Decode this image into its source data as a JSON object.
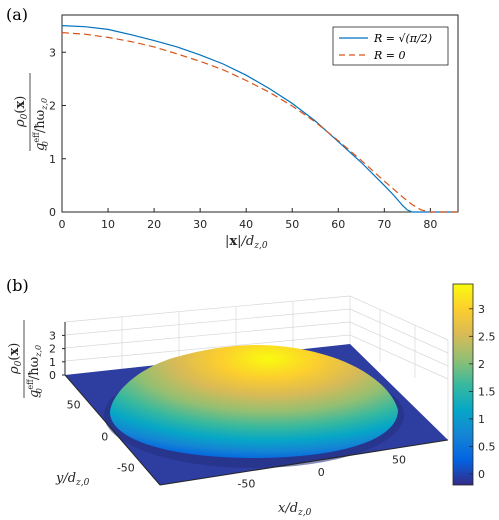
{
  "panels": {
    "a": {
      "label": "(a)"
    },
    "b": {
      "label": "(b)"
    }
  },
  "chart_data": [
    {
      "type": "line",
      "panel": "(a)",
      "xlabel": "|x|/d_{z,0}",
      "ylabel": "ρ0(x) / g0^eff/ħω_{z,0}",
      "xlim": [
        0,
        86
      ],
      "ylim": [
        0,
        3.7
      ],
      "xticks": [
        "0",
        "10",
        "20",
        "30",
        "40",
        "50",
        "60",
        "70",
        "80"
      ],
      "yticks": [
        "0",
        "1",
        "2",
        "3"
      ],
      "grid": false,
      "legend_position": "top-right",
      "series": [
        {
          "name": "R = √(π/2)",
          "color": "#0072bd",
          "dash": "solid",
          "x": [
            0,
            5,
            10,
            15,
            20,
            25,
            30,
            35,
            40,
            45,
            50,
            55,
            60,
            65,
            70,
            72,
            74,
            75,
            76,
            80,
            86
          ],
          "y": [
            3.5,
            3.48,
            3.43,
            3.33,
            3.22,
            3.1,
            2.95,
            2.78,
            2.57,
            2.32,
            2.04,
            1.71,
            1.32,
            0.93,
            0.5,
            0.32,
            0.12,
            0.04,
            0.0,
            0.0,
            0.0
          ]
        },
        {
          "name": "R = 0",
          "color": "#d95319",
          "dash": "dashed",
          "x": [
            0,
            5,
            10,
            15,
            20,
            25,
            30,
            35,
            40,
            45,
            50,
            55,
            60,
            65,
            70,
            72,
            74,
            76,
            78,
            80,
            86
          ],
          "y": [
            3.37,
            3.34,
            3.28,
            3.2,
            3.1,
            2.97,
            2.83,
            2.67,
            2.47,
            2.25,
            1.99,
            1.69,
            1.34,
            0.97,
            0.58,
            0.43,
            0.28,
            0.14,
            0.04,
            0.0,
            0.0
          ]
        }
      ]
    },
    {
      "type": "surface",
      "panel": "(b)",
      "xlabel": "x/d_{z,0}",
      "ylabel": "y/d_{z,0}",
      "zlabel": "ρ0(x) / g0^eff/ħω_{z,0}",
      "xticks": [
        "-50",
        "0",
        "50"
      ],
      "yticks": [
        "50",
        "0",
        "-50"
      ],
      "zticks": [
        "0",
        "1",
        "2",
        "3"
      ],
      "zlim": [
        0,
        3.5
      ],
      "peak_value": 3.5,
      "footprint_radius": 76,
      "colormap": "parula",
      "colorbar_ticks": [
        "0",
        "0.5",
        "1",
        "1.5",
        "2",
        "2.5",
        "3"
      ],
      "colorbar_range": [
        -0.2,
        3.45
      ],
      "colorbar_colors": [
        "#352a87",
        "#0363e1",
        "#1485d4",
        "#06a7c6",
        "#38b99e",
        "#92bf73",
        "#d9ba56",
        "#fcce2e",
        "#f9fb0e"
      ]
    }
  ]
}
